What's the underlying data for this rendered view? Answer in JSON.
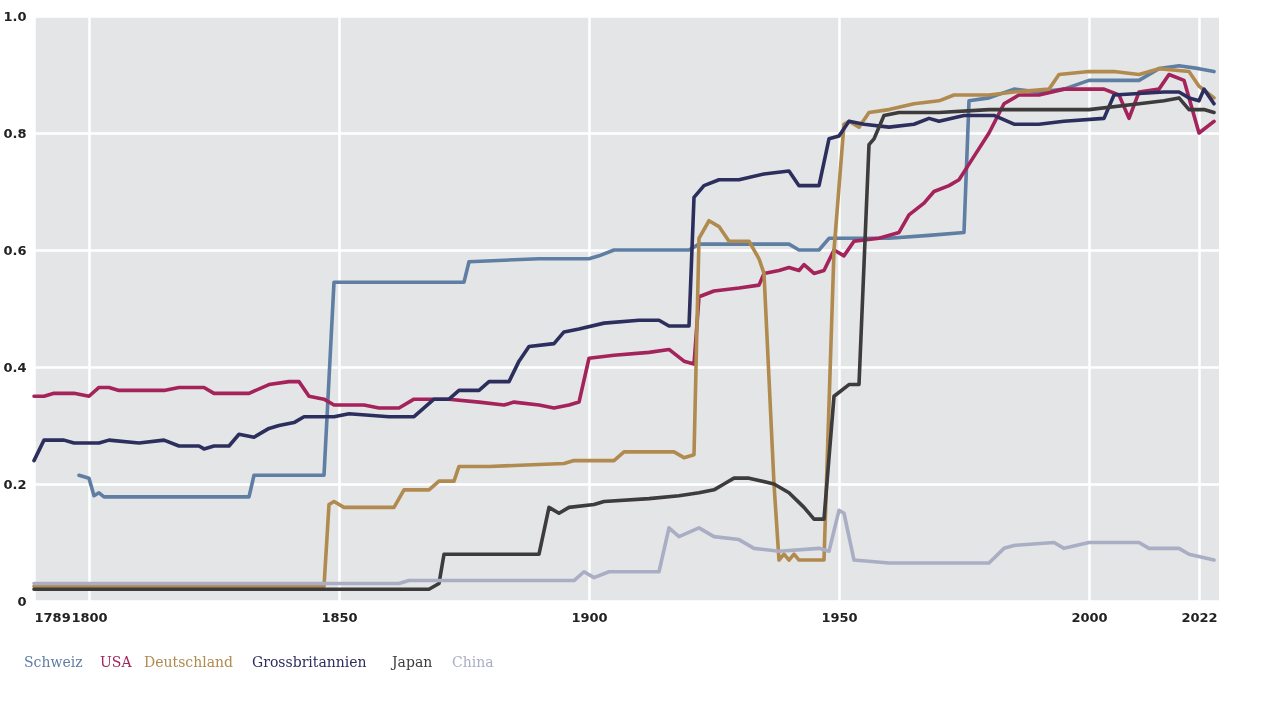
{
  "chart_data": {
    "type": "line",
    "xlim": [
      1789,
      2026
    ],
    "xticks": [
      1789,
      1800,
      1850,
      1900,
      1950,
      2000,
      2022
    ],
    "ylim": [
      0,
      1.0
    ],
    "yticks": [
      0,
      0.2,
      0.4,
      0.6,
      0.8,
      {
        "value": 1.0,
        "label": "1.0"
      }
    ],
    "grid": true,
    "legend": "bottom",
    "line_style": "solid",
    "marker": "none",
    "series": [
      {
        "name": "Schweiz",
        "color": "#5f7ea3",
        "x": [
          1798,
          1800,
          1801,
          1802,
          1803,
          1832,
          1833,
          1847,
          1849,
          1875,
          1876,
          1890,
          1900,
          1902,
          1905,
          1920,
          1922,
          1940,
          1942,
          1946,
          1948,
          1960,
          1968,
          1975,
          1976,
          1980,
          1985,
          1990,
          1995,
          2000,
          2010,
          2014,
          2018,
          2022,
          2025
        ],
        "values": [
          0.215,
          0.21,
          0.18,
          0.185,
          0.178,
          0.178,
          0.215,
          0.215,
          0.545,
          0.545,
          0.58,
          0.585,
          0.585,
          0.59,
          0.6,
          0.6,
          0.61,
          0.61,
          0.6,
          0.6,
          0.62,
          0.62,
          0.625,
          0.63,
          0.855,
          0.86,
          0.875,
          0.87,
          0.875,
          0.89,
          0.89,
          0.91,
          0.915,
          0.91,
          0.905
        ]
      },
      {
        "name": "USA",
        "color": "#a3235a",
        "x": [
          1789,
          1791,
          1793,
          1797,
          1800,
          1802,
          1804,
          1806,
          1815,
          1818,
          1823,
          1825,
          1832,
          1836,
          1840,
          1842,
          1844,
          1847,
          1849,
          1855,
          1858,
          1862,
          1865,
          1872,
          1878,
          1883,
          1885,
          1890,
          1893,
          1896,
          1898,
          1900,
          1905,
          1912,
          1916,
          1919,
          1921,
          1922,
          1925,
          1930,
          1934,
          1935,
          1938,
          1940,
          1942,
          1943,
          1945,
          1947,
          1949,
          1951,
          1953,
          1958,
          1962,
          1964,
          1967,
          1969,
          1972,
          1974,
          1977,
          1980,
          1983,
          1986,
          1990,
          1995,
          2003,
          2006,
          2008,
          2010,
          2014,
          2016,
          2019,
          2021,
          2022,
          2025
        ],
        "values": [
          0.35,
          0.35,
          0.355,
          0.355,
          0.35,
          0.365,
          0.365,
          0.36,
          0.36,
          0.365,
          0.365,
          0.355,
          0.355,
          0.37,
          0.375,
          0.375,
          0.35,
          0.345,
          0.335,
          0.335,
          0.33,
          0.33,
          0.345,
          0.345,
          0.34,
          0.335,
          0.34,
          0.335,
          0.33,
          0.335,
          0.34,
          0.415,
          0.42,
          0.425,
          0.43,
          0.41,
          0.405,
          0.52,
          0.53,
          0.535,
          0.54,
          0.56,
          0.565,
          0.57,
          0.565,
          0.575,
          0.56,
          0.565,
          0.6,
          0.59,
          0.615,
          0.62,
          0.63,
          0.66,
          0.68,
          0.7,
          0.71,
          0.72,
          0.76,
          0.8,
          0.85,
          0.865,
          0.865,
          0.875,
          0.875,
          0.865,
          0.825,
          0.87,
          0.875,
          0.9,
          0.89,
          0.83,
          0.8,
          0.82
        ]
      },
      {
        "name": "Deutschland",
        "color": "#b08a4e",
        "x": [
          1789,
          1847,
          1848,
          1849,
          1851,
          1861,
          1863,
          1868,
          1870,
          1873,
          1874,
          1880,
          1895,
          1897,
          1905,
          1907,
          1912,
          1917,
          1919,
          1921,
          1922,
          1924,
          1926,
          1928,
          1932,
          1934,
          1935,
          1937,
          1938,
          1939,
          1940,
          1941,
          1942,
          1947,
          1949,
          1951,
          1952,
          1954,
          1956,
          1960,
          1965,
          1970,
          1973,
          1980,
          1985,
          1992,
          1994,
          2000,
          2005,
          2010,
          2014,
          2020,
          2022,
          2025
        ],
        "values": [
          0.025,
          0.025,
          0.165,
          0.17,
          0.16,
          0.16,
          0.19,
          0.19,
          0.205,
          0.205,
          0.23,
          0.23,
          0.235,
          0.24,
          0.24,
          0.255,
          0.255,
          0.255,
          0.245,
          0.25,
          0.62,
          0.65,
          0.64,
          0.615,
          0.615,
          0.585,
          0.56,
          0.2,
          0.07,
          0.08,
          0.07,
          0.08,
          0.07,
          0.07,
          0.6,
          0.815,
          0.82,
          0.81,
          0.835,
          0.84,
          0.85,
          0.855,
          0.865,
          0.865,
          0.87,
          0.875,
          0.9,
          0.905,
          0.905,
          0.9,
          0.91,
          0.905,
          0.88,
          0.86
        ]
      },
      {
        "name": "Grossbritannien",
        "color": "#2c2f5e",
        "x": [
          1789,
          1791,
          1795,
          1797,
          1802,
          1804,
          1810,
          1815,
          1818,
          1822,
          1823,
          1825,
          1828,
          1830,
          1833,
          1836,
          1838,
          1841,
          1843,
          1849,
          1852,
          1860,
          1865,
          1867,
          1869,
          1872,
          1874,
          1878,
          1880,
          1884,
          1886,
          1888,
          1893,
          1895,
          1898,
          1903,
          1910,
          1914,
          1916,
          1920,
          1921,
          1923,
          1926,
          1930,
          1935,
          1940,
          1942,
          1946,
          1948,
          1950,
          1952,
          1955,
          1960,
          1965,
          1968,
          1970,
          1975,
          1981,
          1985,
          1990,
          1995,
          2003,
          2005,
          2015,
          2018,
          2020,
          2022,
          2023,
          2025
        ],
        "values": [
          0.24,
          0.275,
          0.275,
          0.27,
          0.27,
          0.275,
          0.27,
          0.275,
          0.265,
          0.265,
          0.26,
          0.265,
          0.265,
          0.285,
          0.28,
          0.295,
          0.3,
          0.305,
          0.315,
          0.315,
          0.32,
          0.315,
          0.315,
          0.33,
          0.345,
          0.345,
          0.36,
          0.36,
          0.375,
          0.375,
          0.41,
          0.435,
          0.44,
          0.46,
          0.465,
          0.475,
          0.48,
          0.48,
          0.47,
          0.47,
          0.69,
          0.71,
          0.72,
          0.72,
          0.73,
          0.735,
          0.71,
          0.71,
          0.79,
          0.795,
          0.82,
          0.815,
          0.81,
          0.815,
          0.825,
          0.82,
          0.83,
          0.83,
          0.815,
          0.815,
          0.82,
          0.825,
          0.865,
          0.87,
          0.87,
          0.86,
          0.855,
          0.875,
          0.85
        ]
      },
      {
        "name": "Japan",
        "color": "#3d3b3b",
        "x": [
          1789,
          1868,
          1870,
          1871,
          1890,
          1892,
          1894,
          1896,
          1901,
          1903,
          1912,
          1918,
          1922,
          1925,
          1927,
          1929,
          1932,
          1937,
          1940,
          1943,
          1945,
          1947,
          1949,
          1952,
          1954,
          1956,
          1957,
          1959,
          1962,
          1970,
          1980,
          2000,
          2010,
          2015,
          2018,
          2020,
          2023,
          2025
        ],
        "values": [
          0.02,
          0.02,
          0.03,
          0.08,
          0.08,
          0.16,
          0.15,
          0.16,
          0.165,
          0.17,
          0.175,
          0.18,
          0.185,
          0.19,
          0.2,
          0.21,
          0.21,
          0.2,
          0.185,
          0.16,
          0.14,
          0.14,
          0.35,
          0.37,
          0.37,
          0.78,
          0.79,
          0.83,
          0.835,
          0.835,
          0.84,
          0.84,
          0.85,
          0.855,
          0.86,
          0.84,
          0.84,
          0.835
        ]
      },
      {
        "name": "China",
        "color": "#a9aec4",
        "x": [
          1789,
          1862,
          1864,
          1897,
          1899,
          1901,
          1904,
          1914,
          1916,
          1918,
          1922,
          1925,
          1930,
          1933,
          1938,
          1946,
          1948,
          1950,
          1951,
          1953,
          1960,
          1975,
          1980,
          1983,
          1985,
          1993,
          1995,
          2000,
          2010,
          2012,
          2018,
          2020,
          2025
        ],
        "values": [
          0.03,
          0.03,
          0.035,
          0.035,
          0.05,
          0.04,
          0.05,
          0.05,
          0.125,
          0.11,
          0.125,
          0.11,
          0.105,
          0.09,
          0.085,
          0.09,
          0.085,
          0.155,
          0.15,
          0.07,
          0.065,
          0.065,
          0.065,
          0.09,
          0.095,
          0.1,
          0.09,
          0.1,
          0.1,
          0.09,
          0.09,
          0.08,
          0.07
        ]
      }
    ]
  }
}
